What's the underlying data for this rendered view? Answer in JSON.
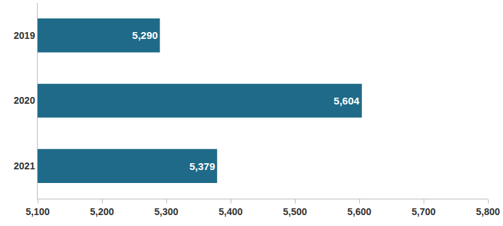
{
  "chart_data": {
    "type": "bar",
    "orientation": "horizontal",
    "categories": [
      "2019",
      "2020",
      "2021"
    ],
    "values": [
      5290,
      5604,
      5379
    ],
    "value_labels": [
      "5,290",
      "5,604",
      "5,379"
    ],
    "data_labels": true,
    "color": "#1f6a88",
    "xlim": [
      5100,
      5800
    ],
    "xticks": [
      {
        "value": 5100,
        "label": "5,100"
      },
      {
        "value": 5200,
        "label": "5,200"
      },
      {
        "value": 5300,
        "label": "5,300"
      },
      {
        "value": 5400,
        "label": "5,400"
      },
      {
        "value": 5500,
        "label": "5,500"
      },
      {
        "value": 5600,
        "label": "5,600"
      },
      {
        "value": 5700,
        "label": "5,700"
      },
      {
        "value": 5800,
        "label": "5,800"
      }
    ],
    "grid": false
  }
}
